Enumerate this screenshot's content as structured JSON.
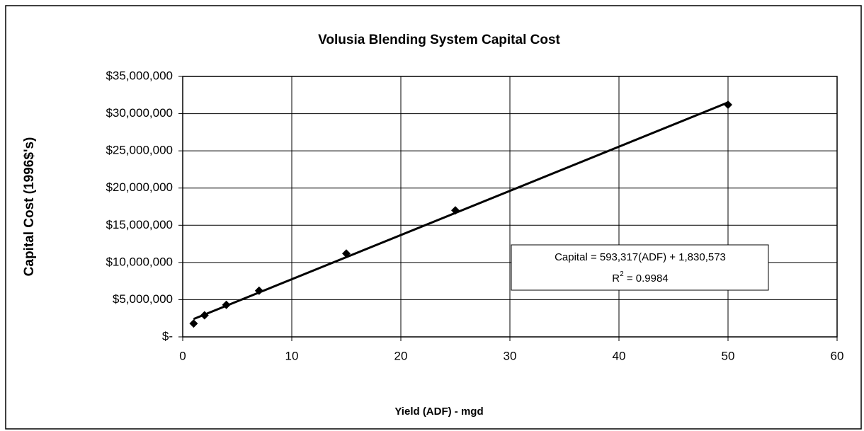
{
  "chart_data": {
    "type": "scatter",
    "title": "Volusia Blending System Capital Cost",
    "x_label": "Yield (ADF) - mgd",
    "y_label": "Capital Cost (1996$'s)",
    "x": [
      1,
      2,
      4,
      7,
      15,
      25,
      50
    ],
    "values": [
      1800000,
      2900000,
      4300000,
      6200000,
      11200000,
      17000000,
      31200000
    ],
    "color": "#000000",
    "trendline": {
      "x": [
        1,
        50
      ],
      "values": [
        2400000,
        31500000
      ],
      "color": "#000000"
    },
    "annotation": {
      "equation": "Capital = 593,317(ADF) + 1,830,573",
      "r2_base": "R",
      "r2_sup": "2",
      "r2_text": " = 0.9984"
    },
    "xlim": [
      0,
      60
    ],
    "xticks": [
      0,
      10,
      20,
      30,
      40,
      50,
      60
    ],
    "ylim": [
      0,
      35000000
    ],
    "yticks": [
      {
        "value": 0,
        "label": "$-"
      },
      {
        "value": 5000000,
        "label": "$5,000,000"
      },
      {
        "value": 10000000,
        "label": "$10,000,000"
      },
      {
        "value": 15000000,
        "label": "$15,000,000"
      },
      {
        "value": 20000000,
        "label": "$20,000,000"
      },
      {
        "value": 25000000,
        "label": "$25,000,000"
      },
      {
        "value": 30000000,
        "label": "$30,000,000"
      },
      {
        "value": 35000000,
        "label": "$35,000,000"
      }
    ],
    "grid": true
  }
}
